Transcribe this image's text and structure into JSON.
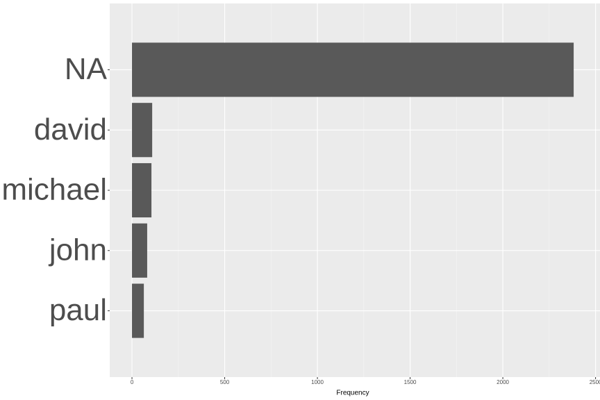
{
  "chart_data": {
    "type": "barh",
    "categories": [
      "NA",
      "david",
      "michael",
      "john",
      "paul"
    ],
    "values": [
      2382,
      109,
      105,
      82,
      64
    ],
    "color": "#595959",
    "xlabel": "Frequency",
    "xlim": [
      -120,
      2524
    ],
    "xticks": [
      0,
      500,
      1000,
      1500,
      2000,
      2500
    ],
    "grid": true
  }
}
